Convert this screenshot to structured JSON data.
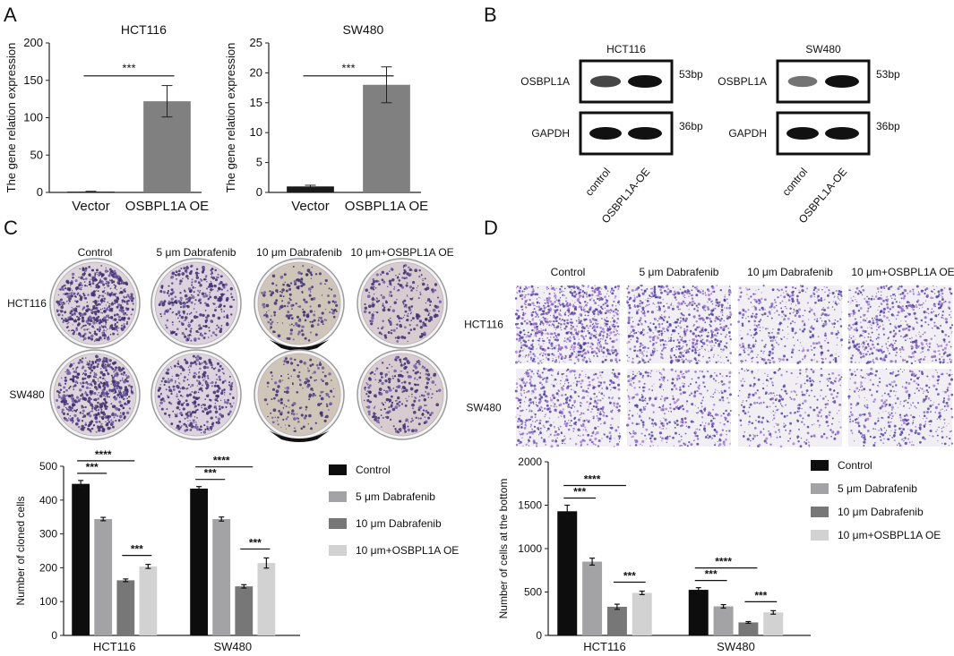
{
  "figure": {
    "panel_letters": [
      "A",
      "B",
      "C",
      "D"
    ]
  },
  "panel_a": {
    "charts": [
      {
        "type": "bar",
        "title": "HCT116",
        "ylabel": "The gene relation expression",
        "categories": [
          "Vector",
          "OSBPL1A OE"
        ],
        "values": [
          1,
          122
        ],
        "errors": [
          0.5,
          21
        ],
        "ylim": [
          0,
          200
        ],
        "yticks": [
          "0",
          "50",
          "100",
          "150",
          "200"
        ],
        "significance": "***",
        "colors": [
          "#1a1a1a",
          "#808080"
        ]
      },
      {
        "type": "bar",
        "title": "SW480",
        "ylabel": "The gene relation expression",
        "categories": [
          "Vector",
          "OSBPL1A OE"
        ],
        "values": [
          1,
          18
        ],
        "errors": [
          0.2,
          3
        ],
        "ylim": [
          0,
          25
        ],
        "yticks": [
          "0",
          "5",
          "10",
          "15",
          "20",
          "25"
        ],
        "significance": "***",
        "colors": [
          "#1a1a1a",
          "#808080"
        ]
      }
    ]
  },
  "panel_b": {
    "blots": [
      {
        "cell_line": "HCT116",
        "rows": [
          {
            "label": "OSBPL1A",
            "size": "53bp",
            "intensity": [
              0.7,
              1.0
            ]
          },
          {
            "label": "GAPDH",
            "size": "36bp",
            "intensity": [
              1.0,
              1.0
            ]
          }
        ],
        "lanes": [
          "control",
          "OSBPL1A-OE"
        ]
      },
      {
        "cell_line": "SW480",
        "rows": [
          {
            "label": "OSBPL1A",
            "size": "53bp",
            "intensity": [
              0.45,
              1.0
            ]
          },
          {
            "label": "GAPDH",
            "size": "36bp",
            "intensity": [
              1.0,
              1.0
            ]
          }
        ],
        "lanes": [
          "control",
          "OSBPL1A-OE"
        ]
      }
    ]
  },
  "panel_c": {
    "columns": [
      "Control",
      "5 μm Dabrafenib",
      "10 μm Dabrafenib",
      "10 μm+OSBPL1A OE"
    ],
    "rows": [
      "HCT116",
      "SW480"
    ],
    "colony_density": [
      [
        1.0,
        0.55,
        0.25,
        0.35
      ],
      [
        0.95,
        0.55,
        0.2,
        0.4
      ]
    ],
    "chart": {
      "type": "bar",
      "ylabel": "Number of cloned cells",
      "categories": [
        "HCT116",
        "SW480"
      ],
      "ylim": [
        0,
        500
      ],
      "yticks": [
        "0",
        "100",
        "200",
        "300",
        "400",
        "500"
      ],
      "series": [
        {
          "name": "Control",
          "color": "#0d0d0d",
          "values": [
            448,
            434
          ],
          "errors": [
            10,
            6
          ]
        },
        {
          "name": "5 μm Dabrafenib",
          "color": "#a3a3a6",
          "values": [
            344,
            344
          ],
          "errors": [
            5,
            6
          ]
        },
        {
          "name": "10 μm Dabrafenib",
          "color": "#777777",
          "values": [
            163,
            145
          ],
          "errors": [
            4,
            5
          ]
        },
        {
          "name": "10 μm+OSBPL1A OE",
          "color": "#d2d2d2",
          "values": [
            204,
            214
          ],
          "errors": [
            6,
            15
          ]
        }
      ],
      "significance": {
        "control_vs_5": "***",
        "control_vs_10": "****",
        "ten_vs_oe": "***"
      }
    }
  },
  "panel_d": {
    "columns": [
      "Control",
      "5 μm Dabrafenib",
      "10 μm Dabrafenib",
      "10 μm+OSBPL1A OE"
    ],
    "rows": [
      "HCT116",
      "SW480"
    ],
    "cell_density": [
      [
        1.0,
        0.7,
        0.4,
        0.55
      ],
      [
        0.55,
        0.4,
        0.25,
        0.35
      ]
    ],
    "chart": {
      "type": "bar",
      "ylabel": "Number of cells at the bottom",
      "categories": [
        "HCT116",
        "SW480"
      ],
      "ylim": [
        0,
        2000
      ],
      "yticks": [
        "0",
        "500",
        "1000",
        "1500",
        "2000"
      ],
      "series": [
        {
          "name": "Control",
          "color": "#0d0d0d",
          "values": [
            1430,
            525
          ],
          "errors": [
            70,
            25
          ]
        },
        {
          "name": "5 μm Dabrafenib",
          "color": "#a3a3a6",
          "values": [
            850,
            335
          ],
          "errors": [
            40,
            20
          ]
        },
        {
          "name": "10 μm Dabrafenib",
          "color": "#777777",
          "values": [
            330,
            150
          ],
          "errors": [
            30,
            10
          ]
        },
        {
          "name": "10 μm+OSBPL1A OE",
          "color": "#d2d2d2",
          "values": [
            490,
            265
          ],
          "errors": [
            20,
            20
          ]
        }
      ],
      "significance": {
        "control_vs_5": "***",
        "control_vs_10": "****",
        "ten_vs_oe": "***"
      }
    }
  }
}
